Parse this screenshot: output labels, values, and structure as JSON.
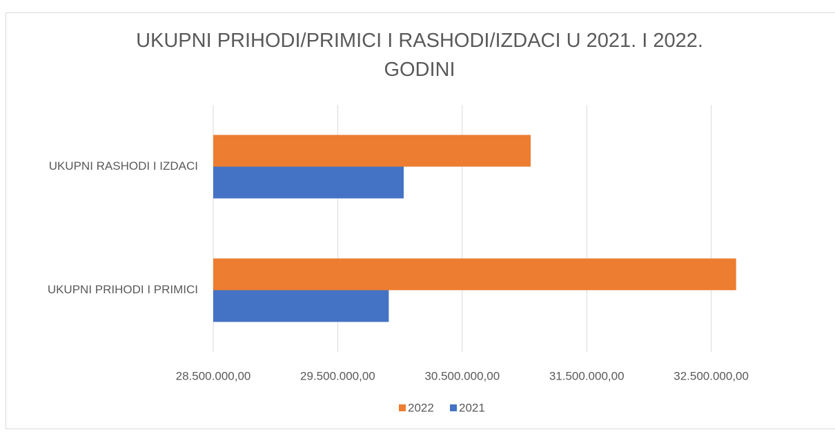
{
  "chart_data": {
    "type": "hbar",
    "title": "UKUPNI PRIHODI/PRIMICI I RASHODI/IZDACI U 2021. I 2022. GODINI",
    "categories": [
      "UKUPNI RASHODI I IZDACI",
      "UKUPNI PRIHODI I PRIMICI"
    ],
    "series": [
      {
        "name": "2022",
        "color": "#ed7d31",
        "values": [
          31050000,
          32700000
        ]
      },
      {
        "name": "2021",
        "color": "#4472c4",
        "values": [
          30030000,
          29910000
        ]
      }
    ],
    "xlim": [
      28500000,
      33500000
    ],
    "xticks": [
      {
        "value": 28500000,
        "label": "28.500.000,00"
      },
      {
        "value": 29500000,
        "label": "29.500.000,00"
      },
      {
        "value": 30500000,
        "label": "30.500.000,00"
      },
      {
        "value": 31500000,
        "label": "31.500.000,00"
      },
      {
        "value": 32500000,
        "label": "32.500.000,00"
      }
    ],
    "grid": true,
    "legend": "bottom"
  }
}
